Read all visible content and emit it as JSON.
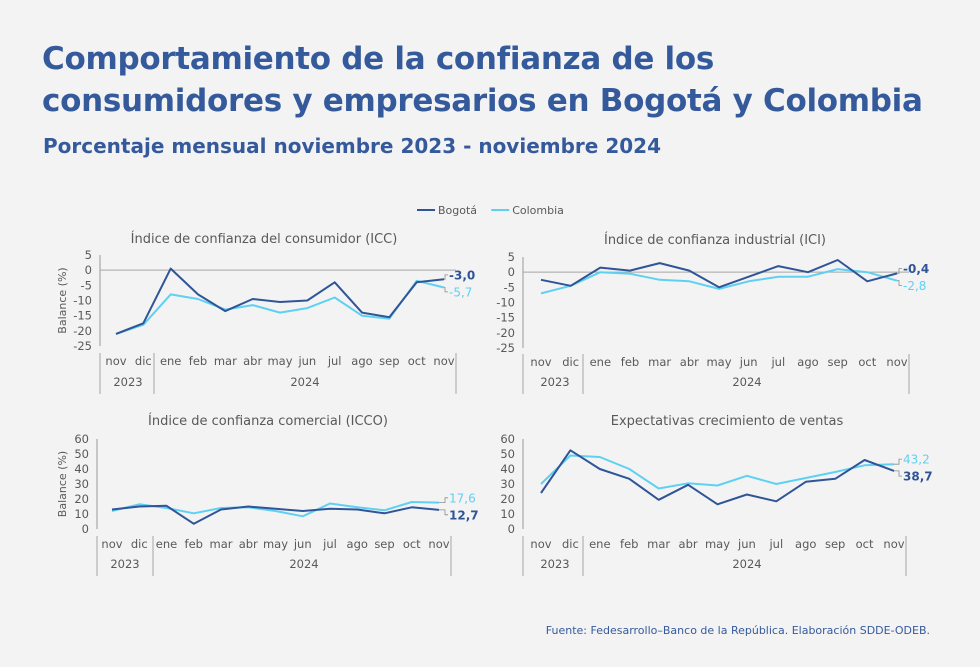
{
  "title": "Comportamiento de la confianza de los consumidores y empresarios en Bogotá y Colombia",
  "subtitle": "Porcentaje mensual noviembre 2023 - noviembre 2024",
  "source": "Fuente: Fedesarrollo–Banco de la República. Elaboración SDDE-ODEB.",
  "legend": [
    {
      "name": "Bogotá",
      "color": "#2f5597"
    },
    {
      "name": "Colombia",
      "color": "#5ed1f2"
    }
  ],
  "colors": {
    "bogota": "#2f5597",
    "colombia": "#5ed1f2",
    "axis": "#595959",
    "title": "#355a9b"
  },
  "chart_data": [
    {
      "type": "line",
      "title": "Índice de confianza del consumidor (ICC)",
      "ylabel": "Balance (%)",
      "xlabel": "",
      "ylim": [
        -25,
        5
      ],
      "yticks": [
        5,
        0,
        -5,
        -10,
        -15,
        -20,
        -25
      ],
      "categories": [
        "nov",
        "dic",
        "ene",
        "feb",
        "mar",
        "abr",
        "may",
        "jun",
        "jul",
        "ago",
        "sep",
        "oct",
        "nov"
      ],
      "years": [
        {
          "label": "2023",
          "start": 0,
          "end": 1
        },
        {
          "label": "2024",
          "start": 2,
          "end": 12
        }
      ],
      "series": [
        {
          "name": "Bogotá",
          "values": [
            -21,
            -17.5,
            0.5,
            -8,
            -13.5,
            -9.5,
            -10.5,
            -10,
            -4,
            -14,
            -15.5,
            -4,
            -3.0
          ]
        },
        {
          "name": "Colombia",
          "values": [
            -21,
            -18,
            -8,
            -9.5,
            -13,
            -11.5,
            -14,
            -12.5,
            -9,
            -15,
            -16,
            -3.5,
            -5.7
          ]
        }
      ],
      "end_labels": {
        "Bogotá": "-3,0",
        "Colombia": "-5,7"
      },
      "zero_line": true
    },
    {
      "type": "line",
      "title": "Índice de confianza industrial (ICI)",
      "ylabel": "",
      "xlabel": "",
      "ylim": [
        -25,
        5
      ],
      "yticks": [
        5,
        0,
        -5,
        -10,
        -15,
        -20,
        -25
      ],
      "categories": [
        "nov",
        "dic",
        "ene",
        "feb",
        "mar",
        "abr",
        "may",
        "jun",
        "jul",
        "ago",
        "sep",
        "oct",
        "nov"
      ],
      "years": [
        {
          "label": "2023",
          "start": 0,
          "end": 1
        },
        {
          "label": "2024",
          "start": 2,
          "end": 12
        }
      ],
      "series": [
        {
          "name": "Bogotá",
          "values": [
            -2.5,
            -4.5,
            1.5,
            0.5,
            3,
            0.5,
            -5,
            -1.5,
            2,
            0,
            4,
            -3,
            -0.4
          ]
        },
        {
          "name": "Colombia",
          "values": [
            -7,
            -4.5,
            0,
            -0.5,
            -2.5,
            -3,
            -5.5,
            -3,
            -1.5,
            -1.5,
            1,
            0,
            -2.8
          ]
        }
      ],
      "end_labels": {
        "Bogotá": "-0,4",
        "Colombia": "-2,8"
      },
      "zero_line": true
    },
    {
      "type": "line",
      "title": "Índice de confianza comercial (ICCO)",
      "ylabel": "Balance (%)",
      "xlabel": "",
      "ylim": [
        0,
        60
      ],
      "yticks": [
        60,
        50,
        40,
        30,
        20,
        10,
        0
      ],
      "categories": [
        "nov",
        "dic",
        "ene",
        "feb",
        "mar",
        "abr",
        "may",
        "jun",
        "jul",
        "ago",
        "sep",
        "oct",
        "nov"
      ],
      "years": [
        {
          "label": "2023",
          "start": 0,
          "end": 1
        },
        {
          "label": "2024",
          "start": 2,
          "end": 12
        }
      ],
      "series": [
        {
          "name": "Bogotá",
          "values": [
            13,
            15,
            15.5,
            3.5,
            13,
            15,
            13.5,
            12,
            13.5,
            13,
            10.5,
            14.5,
            12.7
          ]
        },
        {
          "name": "Colombia",
          "values": [
            12,
            16.5,
            14,
            10.5,
            14,
            14.5,
            12,
            8.5,
            17,
            14.5,
            12.5,
            18,
            17.6
          ]
        }
      ],
      "end_labels": {
        "Bogotá": "12,7",
        "Colombia": "17,6"
      },
      "zero_line": false
    },
    {
      "type": "line",
      "title": "Expectativas crecimiento de ventas",
      "ylabel": "",
      "xlabel": "",
      "ylim": [
        0,
        60
      ],
      "yticks": [
        60,
        50,
        40,
        30,
        20,
        10,
        0
      ],
      "categories": [
        "nov",
        "dic",
        "ene",
        "feb",
        "mar",
        "abr",
        "may",
        "jun",
        "jul",
        "ago",
        "sep",
        "oct",
        "nov"
      ],
      "years": [
        {
          "label": "2023",
          "start": 0,
          "end": 1
        },
        {
          "label": "2024",
          "start": 2,
          "end": 12
        }
      ],
      "series": [
        {
          "name": "Bogotá",
          "values": [
            24,
            52.5,
            40,
            33.5,
            19.5,
            29.5,
            16.5,
            23,
            18.5,
            31.5,
            33.5,
            46,
            38.7
          ]
        },
        {
          "name": "Colombia",
          "values": [
            30,
            49,
            48,
            40,
            27,
            30.5,
            29,
            35.5,
            30,
            34,
            38,
            42.5,
            43.2
          ]
        }
      ],
      "end_labels": {
        "Bogotá": "38,7",
        "Colombia": "43,2"
      },
      "zero_line": false
    }
  ]
}
